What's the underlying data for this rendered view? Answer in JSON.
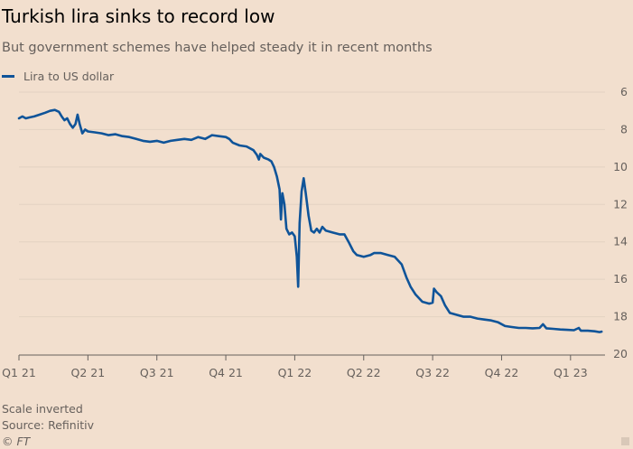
{
  "header": {
    "title": "Turkish lira sinks to record low",
    "subtitle": "But government schemes have helped steady it in recent months"
  },
  "footer": {
    "note": "Scale inverted",
    "source": "Source: Refinitiv",
    "copyright": "© FT"
  },
  "colors": {
    "series": "#0f5499",
    "background": "#f2dfce",
    "grid": "#e3d2c2"
  },
  "chart_data": {
    "type": "line",
    "ylabel": "",
    "xlabel": "",
    "y_inverted": true,
    "ylim": [
      6,
      20
    ],
    "yticks": [
      6,
      8,
      10,
      12,
      14,
      16,
      18,
      20
    ],
    "grid": true,
    "legend_position": "top-left",
    "x_axis": {
      "start": 0,
      "end": 8.5,
      "ticks": [
        {
          "label": "Q1 21",
          "value": 0
        },
        {
          "label": "Q2 21",
          "value": 1
        },
        {
          "label": "Q3 21",
          "value": 2
        },
        {
          "label": "Q4 21",
          "value": 3
        },
        {
          "label": "Q1 22",
          "value": 4
        },
        {
          "label": "Q2 22",
          "value": 5
        },
        {
          "label": "Q3 22",
          "value": 6
        },
        {
          "label": "Q4 22",
          "value": 7
        },
        {
          "label": "Q1 23",
          "value": 8
        }
      ]
    },
    "series": [
      {
        "name": "Lira to US dollar",
        "points": [
          [
            0.0,
            7.4
          ],
          [
            0.05,
            7.3
          ],
          [
            0.1,
            7.4
          ],
          [
            0.15,
            7.35
          ],
          [
            0.22,
            7.3
          ],
          [
            0.3,
            7.2
          ],
          [
            0.38,
            7.1
          ],
          [
            0.45,
            7.0
          ],
          [
            0.52,
            6.95
          ],
          [
            0.58,
            7.05
          ],
          [
            0.62,
            7.3
          ],
          [
            0.66,
            7.5
          ],
          [
            0.7,
            7.4
          ],
          [
            0.74,
            7.7
          ],
          [
            0.78,
            7.9
          ],
          [
            0.82,
            7.7
          ],
          [
            0.85,
            7.2
          ],
          [
            0.88,
            7.7
          ],
          [
            0.92,
            8.2
          ],
          [
            0.96,
            8.0
          ],
          [
            1.0,
            8.1
          ],
          [
            1.1,
            8.15
          ],
          [
            1.2,
            8.2
          ],
          [
            1.3,
            8.3
          ],
          [
            1.4,
            8.25
          ],
          [
            1.5,
            8.35
          ],
          [
            1.6,
            8.4
          ],
          [
            1.7,
            8.5
          ],
          [
            1.8,
            8.6
          ],
          [
            1.9,
            8.65
          ],
          [
            2.0,
            8.6
          ],
          [
            2.1,
            8.7
          ],
          [
            2.2,
            8.6
          ],
          [
            2.3,
            8.55
          ],
          [
            2.4,
            8.5
          ],
          [
            2.5,
            8.55
          ],
          [
            2.6,
            8.4
          ],
          [
            2.7,
            8.5
          ],
          [
            2.8,
            8.3
          ],
          [
            2.9,
            8.35
          ],
          [
            3.0,
            8.4
          ],
          [
            3.05,
            8.5
          ],
          [
            3.1,
            8.7
          ],
          [
            3.2,
            8.85
          ],
          [
            3.3,
            8.9
          ],
          [
            3.4,
            9.1
          ],
          [
            3.45,
            9.35
          ],
          [
            3.48,
            9.6
          ],
          [
            3.5,
            9.3
          ],
          [
            3.55,
            9.5
          ],
          [
            3.62,
            9.6
          ],
          [
            3.66,
            9.7
          ],
          [
            3.7,
            10.0
          ],
          [
            3.74,
            10.5
          ],
          [
            3.78,
            11.2
          ],
          [
            3.8,
            12.8
          ],
          [
            3.82,
            11.4
          ],
          [
            3.85,
            12.0
          ],
          [
            3.88,
            13.3
          ],
          [
            3.92,
            13.6
          ],
          [
            3.96,
            13.5
          ],
          [
            4.0,
            13.7
          ],
          [
            4.03,
            14.8
          ],
          [
            4.05,
            16.4
          ],
          [
            4.07,
            13.0
          ],
          [
            4.1,
            11.3
          ],
          [
            4.13,
            10.6
          ],
          [
            4.16,
            11.4
          ],
          [
            4.2,
            12.6
          ],
          [
            4.24,
            13.4
          ],
          [
            4.28,
            13.5
          ],
          [
            4.32,
            13.3
          ],
          [
            4.36,
            13.5
          ],
          [
            4.4,
            13.2
          ],
          [
            4.45,
            13.4
          ],
          [
            4.55,
            13.5
          ],
          [
            4.65,
            13.6
          ],
          [
            4.72,
            13.6
          ],
          [
            4.78,
            14.0
          ],
          [
            4.85,
            14.5
          ],
          [
            4.9,
            14.7
          ],
          [
            5.0,
            14.8
          ],
          [
            5.1,
            14.7
          ],
          [
            5.15,
            14.6
          ],
          [
            5.25,
            14.6
          ],
          [
            5.35,
            14.7
          ],
          [
            5.45,
            14.8
          ],
          [
            5.55,
            15.2
          ],
          [
            5.62,
            15.9
          ],
          [
            5.68,
            16.4
          ],
          [
            5.75,
            16.8
          ],
          [
            5.85,
            17.2
          ],
          [
            5.95,
            17.3
          ],
          [
            6.0,
            17.25
          ],
          [
            6.02,
            16.5
          ],
          [
            6.06,
            16.7
          ],
          [
            6.12,
            16.9
          ],
          [
            6.18,
            17.4
          ],
          [
            6.25,
            17.8
          ],
          [
            6.35,
            17.9
          ],
          [
            6.45,
            18.0
          ],
          [
            6.55,
            18.0
          ],
          [
            6.65,
            18.1
          ],
          [
            6.75,
            18.15
          ],
          [
            6.85,
            18.2
          ],
          [
            6.95,
            18.3
          ],
          [
            7.05,
            18.5
          ],
          [
            7.15,
            18.55
          ],
          [
            7.25,
            18.6
          ],
          [
            7.35,
            18.6
          ],
          [
            7.45,
            18.62
          ],
          [
            7.55,
            18.6
          ],
          [
            7.6,
            18.4
          ],
          [
            7.65,
            18.62
          ],
          [
            7.75,
            18.65
          ],
          [
            7.85,
            18.68
          ],
          [
            7.95,
            18.7
          ],
          [
            8.05,
            18.72
          ],
          [
            8.12,
            18.6
          ],
          [
            8.15,
            18.75
          ],
          [
            8.25,
            18.75
          ],
          [
            8.35,
            18.78
          ],
          [
            8.42,
            18.82
          ],
          [
            8.45,
            18.8
          ]
        ]
      }
    ]
  }
}
